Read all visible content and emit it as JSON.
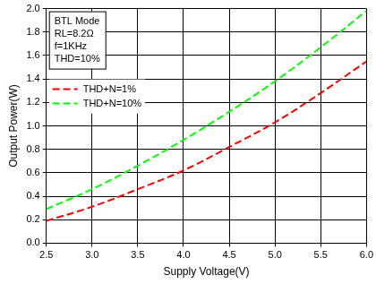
{
  "chart_data": {
    "type": "line",
    "x_label": "Supply Voltage(V)",
    "y_label": "Output Power(W)",
    "annotations": [
      "BTL Mode",
      "RL=8.2Ω",
      "f=1KHz",
      "THD=10%"
    ],
    "x": [
      2.5,
      3.0,
      3.5,
      4.0,
      4.5,
      5.0,
      5.5,
      6.0
    ],
    "series": [
      {
        "name": "THD+N=1%",
        "color": "#ff0000",
        "line_style": "dashed",
        "values": [
          0.19,
          0.31,
          0.46,
          0.62,
          0.82,
          1.03,
          1.28,
          1.55
        ]
      },
      {
        "name": "THD+N=10%",
        "color": "#00ff00",
        "line_style": "dashed",
        "values": [
          0.29,
          0.46,
          0.66,
          0.88,
          1.12,
          1.38,
          1.67,
          1.98
        ]
      }
    ],
    "xlim": [
      2.5,
      6.0
    ],
    "xticks": [
      2.5,
      {
        "value": 3,
        "label": "3.0"
      },
      3.5,
      {
        "value": 4,
        "label": "4.0"
      },
      4.5,
      {
        "value": 5,
        "label": "5.0"
      },
      5.5,
      {
        "value": 6,
        "label": "6.0"
      }
    ],
    "ylim": [
      0,
      2.0
    ],
    "yticks": [
      {
        "value": 0,
        "label": "0.0"
      },
      0.2,
      0.4,
      0.6,
      0.8,
      {
        "value": 1,
        "label": "1.0"
      },
      1.2,
      1.4,
      1.6,
      1.8,
      {
        "value": 2,
        "label": "2.0"
      }
    ],
    "grid": true,
    "legend": "upper left"
  }
}
